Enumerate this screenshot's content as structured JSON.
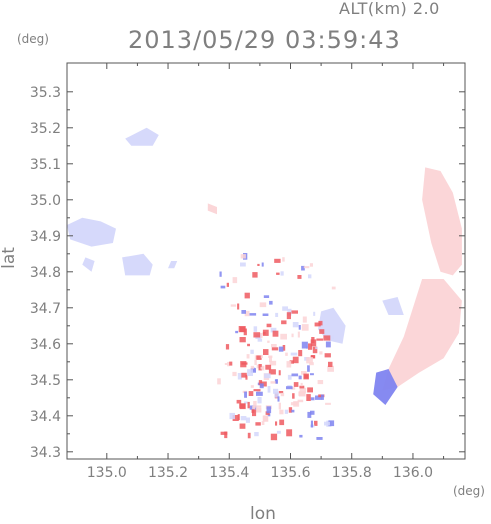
{
  "header": {
    "altitude_label": "ALT(km) 2.0",
    "datetime": "2013/05/29 03:59:43",
    "y_unit": "(deg)",
    "x_unit": "(deg)"
  },
  "colors": {
    "axis": "#555555",
    "text": "#7f7f7f",
    "approaching": "#7f84f0",
    "receding": "#ee5a60",
    "weak_blue": "#d4d7fb",
    "weak_red": "#fbd4d6"
  },
  "chart_data": {
    "type": "heatmap",
    "title": "2013/05/29 03:59:43",
    "subtitle": "ALT(km) 2.0",
    "xlabel": "lon",
    "ylabel": "lat",
    "x_unit": "(deg)",
    "y_unit": "(deg)",
    "xlim": [
      134.87,
      136.17
    ],
    "ylim": [
      34.28,
      35.38
    ],
    "x_ticks": [
      135.0,
      135.2,
      135.4,
      135.6,
      135.8,
      136.0
    ],
    "x_tick_labels": [
      "135.0",
      "135.2",
      "135.4",
      "135.6",
      "135.8",
      "136.0"
    ],
    "y_ticks": [
      34.3,
      34.4,
      34.5,
      34.6,
      34.7,
      34.8,
      34.9,
      35.0,
      35.1,
      35.2,
      35.3
    ],
    "y_tick_labels": [
      "34.3",
      "34.4",
      "34.5",
      "34.6",
      "34.7",
      "34.8",
      "34.9",
      "35.0",
      "35.1",
      "35.2",
      "35.3"
    ],
    "grid": false,
    "echo_regions": [
      {
        "name": "echo-north-blue",
        "color": "weak_blue",
        "lon": [
          135.06,
          135.13,
          135.17,
          135.15,
          135.08
        ],
        "lat": [
          35.17,
          35.2,
          35.18,
          35.15,
          35.15
        ]
      },
      {
        "name": "echo-west-blue",
        "color": "weak_blue",
        "lon": [
          134.87,
          134.92,
          134.98,
          135.03,
          135.02,
          134.95,
          134.88
        ],
        "lat": [
          34.93,
          34.95,
          34.94,
          34.92,
          34.88,
          34.87,
          34.89
        ]
      },
      {
        "name": "echo-west-blue-small",
        "color": "weak_blue",
        "lon": [
          134.93,
          134.96,
          134.95,
          134.92
        ],
        "lat": [
          34.84,
          34.83,
          34.8,
          34.82
        ]
      },
      {
        "name": "echo-west-blue-mid",
        "color": "weak_blue",
        "lon": [
          135.05,
          135.12,
          135.15,
          135.14,
          135.06
        ],
        "lat": [
          34.84,
          34.85,
          34.82,
          34.79,
          34.79
        ]
      },
      {
        "name": "echo-center-red",
        "color": "weak_red",
        "lon": [
          135.33,
          135.36,
          135.36,
          135.33
        ],
        "lat": [
          34.99,
          34.98,
          34.96,
          34.97
        ]
      },
      {
        "name": "echo-mid-blue",
        "color": "weak_blue",
        "lon": [
          135.7,
          135.74,
          135.78,
          135.77,
          135.72,
          135.69
        ],
        "lat": [
          34.69,
          34.7,
          34.65,
          34.6,
          34.61,
          34.64
        ]
      },
      {
        "name": "echo-east-red-arc",
        "color": "weak_red",
        "lon": [
          136.04,
          136.09,
          136.13,
          136.16,
          136.16,
          136.13,
          136.09,
          136.06,
          136.03
        ],
        "lat": [
          35.09,
          35.08,
          35.02,
          34.92,
          34.82,
          34.79,
          34.8,
          34.88,
          35.0
        ]
      },
      {
        "name": "echo-east-red-lower",
        "color": "weak_red",
        "lon": [
          136.03,
          136.1,
          136.16,
          136.15,
          136.1,
          136.02,
          135.95,
          135.9,
          135.92,
          135.97
        ],
        "lat": [
          34.78,
          34.78,
          34.72,
          34.63,
          34.56,
          34.52,
          34.48,
          34.47,
          34.53,
          34.62
        ]
      },
      {
        "name": "echo-east-blue-edge",
        "color": "approaching",
        "lon": [
          135.88,
          135.92,
          135.95,
          135.91,
          135.87
        ],
        "lat": [
          34.52,
          34.53,
          34.48,
          34.43,
          34.46
        ]
      },
      {
        "name": "echo-east-band-blue",
        "color": "weak_blue",
        "lon": [
          135.9,
          135.95,
          135.97,
          135.92
        ],
        "lat": [
          34.72,
          34.73,
          34.68,
          34.68
        ]
      },
      {
        "name": "echo-small-blue-1",
        "color": "weak_blue",
        "lon": [
          135.21,
          135.23,
          135.22,
          135.2
        ],
        "lat": [
          34.83,
          34.83,
          34.81,
          34.81
        ]
      }
    ]
  },
  "cluster": {
    "name": "central-mixed-cells",
    "lon_range": [
      135.36,
      135.74
    ],
    "lat_range": [
      34.34,
      34.86
    ],
    "cell_count": 230
  }
}
